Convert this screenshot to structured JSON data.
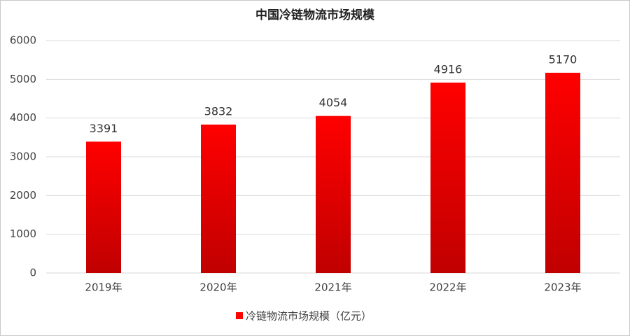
{
  "chart_data": {
    "type": "bar",
    "title": "中国冷链物流市场规模",
    "categories": [
      "2019年",
      "2020年",
      "2021年",
      "2022年",
      "2023年"
    ],
    "series": [
      {
        "name": "冷链物流市场规模（亿元）",
        "color": "#ff0000",
        "gradient_end": "#c00000",
        "values": [
          3391,
          3832,
          4054,
          4916,
          5170
        ]
      }
    ],
    "ylim": [
      0,
      6000
    ],
    "yticks": [
      0,
      1000,
      2000,
      3000,
      4000,
      5000,
      6000
    ],
    "grid": true,
    "legend": "bottom"
  }
}
